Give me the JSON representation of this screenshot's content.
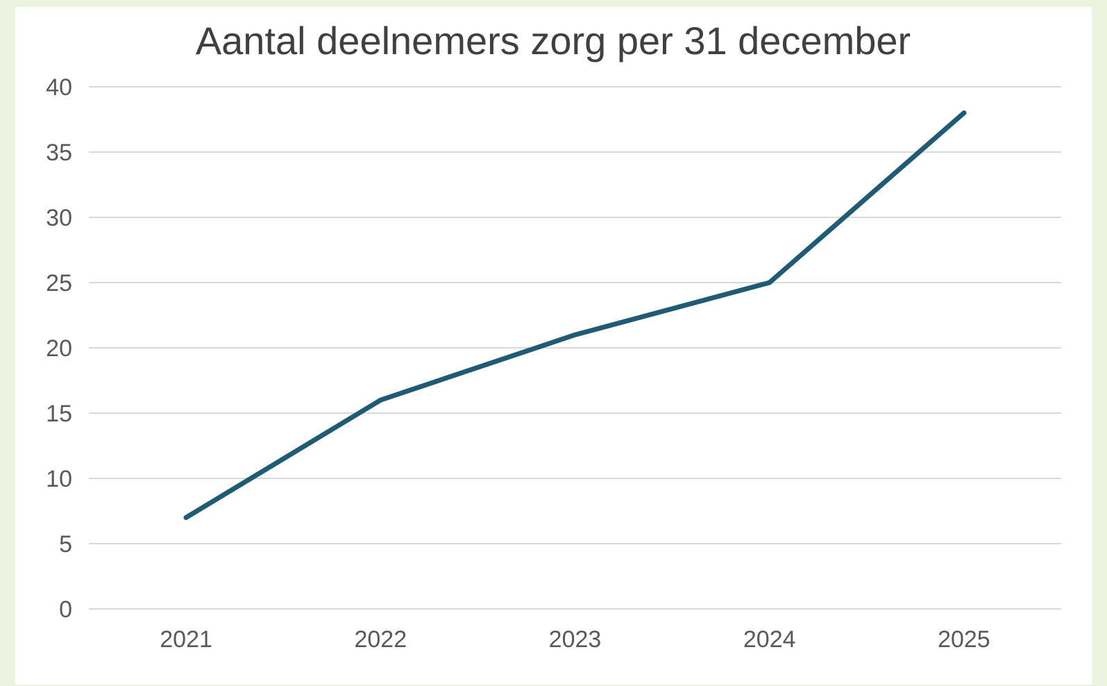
{
  "chart_data": {
    "type": "line",
    "title": "Aantal deelnemers zorg per 31 december",
    "xlabel": "",
    "ylabel": "",
    "categories": [
      "2021",
      "2022",
      "2023",
      "2024",
      "2025"
    ],
    "series": [
      {
        "values": [
          7,
          16,
          21,
          25,
          38
        ]
      }
    ],
    "ylim": [
      0,
      40
    ],
    "yticks": [
      "0",
      "5",
      "10",
      "15",
      "20",
      "25",
      "30",
      "35",
      "40"
    ],
    "grid": true,
    "legend": "none",
    "colors": {
      "line": "#1f5c74",
      "gridline": "#d9d9d9",
      "background": "#ecf3df"
    }
  }
}
